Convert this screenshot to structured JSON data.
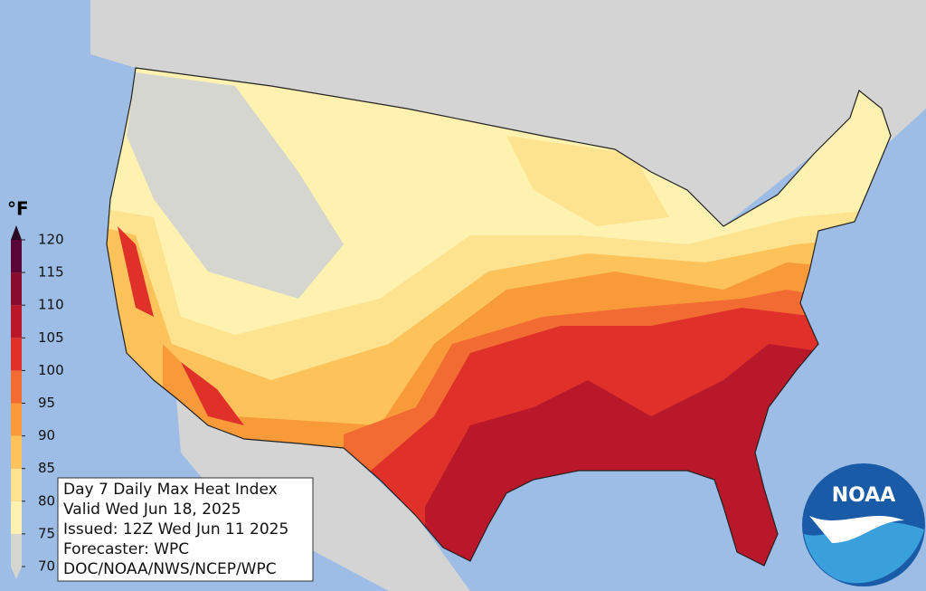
{
  "legend": {
    "unit": "°F",
    "ticks": [
      70,
      75,
      80,
      85,
      90,
      95,
      100,
      105,
      110,
      115,
      120
    ],
    "colors": [
      "#d6d6d0",
      "#fff1b0",
      "#fde28f",
      "#fdc25a",
      "#f99a3a",
      "#f26b32",
      "#e0302a",
      "#b8182a",
      "#8a0c2c",
      "#5a0636"
    ]
  },
  "info": {
    "lines": [
      "Day 7 Daily Max Heat Index",
      "Valid Wed Jun 18, 2025",
      "Issued: 12Z Wed Jun 11 2025",
      "Forecaster: WPC",
      "DOC/NOAA/NWS/NCEP/WPC"
    ]
  },
  "logo": {
    "text": "NOAA"
  }
}
